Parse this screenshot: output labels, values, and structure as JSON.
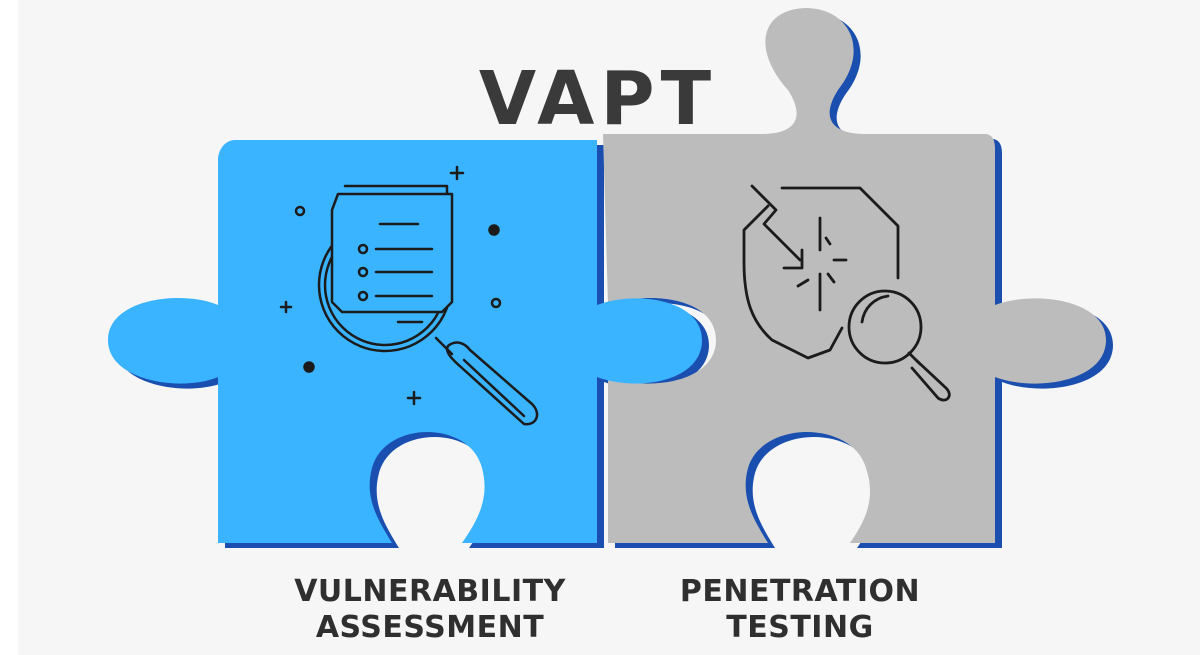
{
  "diagram": {
    "title": "VAPT",
    "left_piece": {
      "line1": "VULNERABILITY",
      "line2": "ASSESSMENT",
      "icon": "document-magnifier-icon",
      "color": "#3ab4ff"
    },
    "right_piece": {
      "line1": "PENETRATION",
      "line2": "TESTING",
      "icon": "shield-breach-magnifier-icon",
      "color": "#bcbcbc"
    },
    "shadow_color": "#1a4fb0",
    "background_color": "#f6f6f6",
    "title_color": "#3a3a3a"
  }
}
